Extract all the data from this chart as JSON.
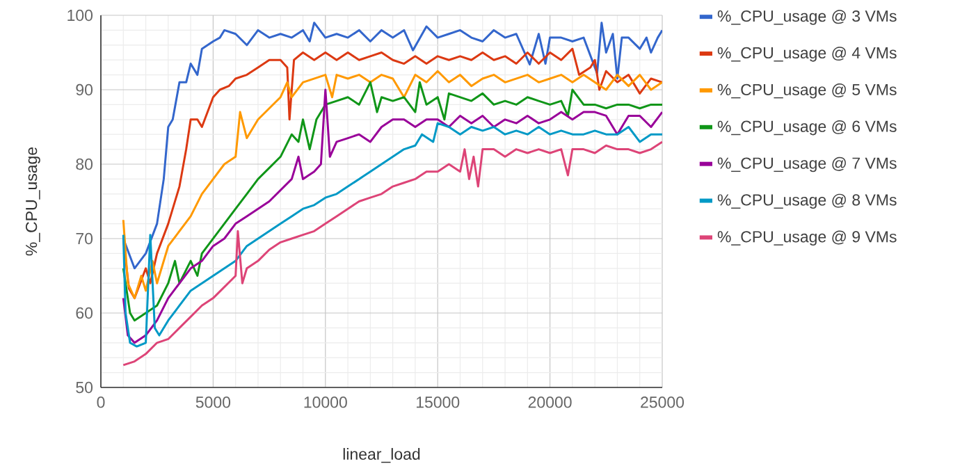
{
  "chart_data": {
    "type": "line",
    "xlabel": "linear_load",
    "ylabel": "%_CPU_usage",
    "xlim": [
      0,
      25000
    ],
    "ylim": [
      50,
      100
    ],
    "xticks": [
      0,
      5000,
      10000,
      15000,
      20000,
      25000
    ],
    "yticks": [
      50,
      60,
      70,
      80,
      90,
      100
    ],
    "grid": true,
    "legend": "right",
    "marker": "none",
    "line_style": "solid",
    "series": [
      {
        "name": "%_CPU_usage @ 3 VMs",
        "color": "#3366cc",
        "x": [
          1000,
          1500,
          2000,
          2500,
          2800,
          3000,
          3200,
          3500,
          3800,
          4000,
          4300,
          4500,
          5000,
          5300,
          5500,
          6000,
          6500,
          7000,
          7500,
          8000,
          8500,
          9000,
          9300,
          9500,
          10000,
          10500,
          11000,
          11500,
          12000,
          12500,
          13000,
          13500,
          13900,
          14500,
          15000,
          15500,
          16000,
          16500,
          17000,
          17500,
          18000,
          18500,
          19100,
          19500,
          19800,
          20000,
          20500,
          21000,
          21500,
          22100,
          22300,
          22500,
          22800,
          23000,
          23200,
          23500,
          24000,
          24300,
          24500,
          24800,
          25000
        ],
        "values": [
          70,
          66,
          68,
          72,
          78,
          85,
          86,
          91,
          91,
          93.5,
          92,
          95.5,
          96.5,
          97,
          98,
          97.5,
          96,
          98,
          97,
          97.5,
          97,
          98,
          96.5,
          99,
          97,
          97.5,
          97,
          98,
          96.5,
          98,
          97,
          98,
          95.3,
          98.5,
          97,
          97.5,
          98,
          97,
          96.5,
          98,
          97,
          97.5,
          93.4,
          97.5,
          93.5,
          97,
          97,
          96.5,
          97,
          92.2,
          99,
          95,
          97.5,
          91.5,
          97,
          97,
          95.5,
          97,
          95,
          97,
          98
        ]
      },
      {
        "name": "%_CPU_usage @ 4 VMs",
        "color": "#dc3912",
        "x": [
          1000,
          1250,
          1500,
          2000,
          2200,
          2500,
          3000,
          3500,
          3800,
          4000,
          4300,
          4500,
          5000,
          5300,
          5700,
          6000,
          6500,
          7000,
          7500,
          8000,
          8300,
          8400,
          8600,
          9000,
          9500,
          10000,
          10500,
          11000,
          11500,
          12000,
          12500,
          13000,
          13500,
          14000,
          14500,
          15000,
          15500,
          16000,
          16500,
          17000,
          17500,
          18000,
          18500,
          19000,
          19500,
          20000,
          20500,
          21000,
          21300,
          21800,
          22000,
          22200,
          22500,
          23000,
          23500,
          24000,
          24500,
          25000
        ],
        "values": [
          70,
          63.3,
          62,
          66,
          64,
          68,
          72,
          77,
          82,
          86,
          86,
          85,
          89,
          90,
          90.5,
          91.5,
          92,
          93,
          94,
          94,
          93,
          86,
          94,
          95,
          94,
          95,
          94,
          95,
          94,
          94.5,
          95,
          94,
          93.5,
          94.5,
          93.5,
          94.5,
          94,
          94.5,
          94,
          95,
          94,
          94.5,
          93.5,
          95,
          93.5,
          95,
          94,
          95.5,
          92,
          93,
          94,
          90,
          92.5,
          91,
          92,
          89.5,
          91.5,
          91
        ]
      },
      {
        "name": "%_CPU_usage @ 5 VMs",
        "color": "#ff9900",
        "x": [
          1000,
          1200,
          1500,
          1800,
          2000,
          2300,
          2500,
          3000,
          3500,
          4000,
          4500,
          5000,
          5500,
          6000,
          6200,
          6500,
          7000,
          7500,
          8000,
          8300,
          8500,
          9000,
          9500,
          10000,
          10300,
          10500,
          11000,
          11500,
          12000,
          12500,
          13000,
          13500,
          14000,
          14500,
          15000,
          15500,
          16000,
          16500,
          17000,
          17500,
          18000,
          18500,
          19000,
          19500,
          20000,
          20500,
          21000,
          21500,
          22000,
          22500,
          23000,
          23500,
          24000,
          24500,
          25000
        ],
        "values": [
          72.5,
          64,
          62,
          65,
          63,
          67,
          64,
          69,
          71,
          73,
          76,
          78,
          80,
          81,
          87,
          83.5,
          86,
          87.5,
          89,
          91,
          89,
          91,
          91.5,
          92,
          89,
          92,
          91.5,
          92,
          91,
          92,
          91.5,
          89,
          92,
          91,
          92.5,
          91,
          92,
          90.5,
          91.5,
          92,
          91,
          91.5,
          92,
          91,
          91.5,
          92,
          91,
          92,
          91,
          90,
          92,
          90.5,
          92,
          90,
          91
        ]
      },
      {
        "name": "%_CPU_usage @ 6 VMs",
        "color": "#109618",
        "x": [
          1000,
          1300,
          1500,
          2000,
          2500,
          3000,
          3300,
          3500,
          4000,
          4300,
          4500,
          5000,
          5500,
          6000,
          6500,
          7000,
          7500,
          8000,
          8500,
          8800,
          9000,
          9300,
          9600,
          10000,
          10500,
          11000,
          11500,
          12000,
          12300,
          12500,
          13000,
          13500,
          14000,
          14200,
          14500,
          15000,
          15300,
          15500,
          16000,
          16500,
          17000,
          17500,
          18000,
          18500,
          19000,
          19500,
          20000,
          20500,
          20800,
          21000,
          21500,
          22000,
          22500,
          23000,
          23500,
          24000,
          24500,
          25000
        ],
        "values": [
          66,
          60,
          59,
          60,
          61,
          64,
          67,
          64,
          67,
          65,
          68,
          70,
          72,
          74,
          76,
          78,
          79.5,
          81,
          84,
          83,
          86,
          82,
          86,
          88,
          88.5,
          89,
          88,
          91,
          87,
          89,
          88.5,
          89,
          87,
          91,
          88,
          89,
          86,
          89.5,
          89,
          88.5,
          89.5,
          88,
          88.5,
          88,
          89,
          88.5,
          88,
          88.5,
          86.5,
          90,
          88,
          88,
          87.5,
          88,
          88,
          87.5,
          88,
          88
        ]
      },
      {
        "name": "%_CPU_usage @ 7 VMs",
        "color": "#990099",
        "x": [
          1000,
          1200,
          1500,
          2000,
          2500,
          3000,
          3500,
          4000,
          4500,
          5000,
          5500,
          6000,
          6500,
          7000,
          7500,
          8000,
          8500,
          8800,
          9000,
          9500,
          9800,
          10000,
          10200,
          10500,
          11000,
          11500,
          12000,
          12500,
          13000,
          13500,
          14000,
          14500,
          15000,
          15500,
          16000,
          16500,
          17000,
          17500,
          18000,
          18500,
          19000,
          19500,
          20000,
          20500,
          21000,
          21500,
          22000,
          22500,
          23000,
          23500,
          24000,
          24500,
          25000
        ],
        "values": [
          62,
          57,
          56,
          57,
          59,
          62,
          64,
          66,
          67,
          69,
          70,
          72,
          73,
          74,
          75,
          76.5,
          78,
          81,
          78,
          79,
          80,
          90,
          81,
          83,
          83.5,
          84,
          83,
          85,
          86,
          86,
          85,
          86,
          86,
          85,
          86.5,
          85.5,
          86.5,
          85,
          86,
          85.5,
          86.5,
          85.5,
          86,
          87,
          86,
          87,
          87,
          86.5,
          84,
          86.5,
          86.5,
          85,
          87
        ]
      },
      {
        "name": "%_CPU_usage @ 8 VMs",
        "color": "#0099c6",
        "x": [
          1000,
          1100,
          1300,
          1600,
          2000,
          2200,
          2400,
          2600,
          3000,
          3500,
          4000,
          4500,
          5000,
          5500,
          6000,
          6500,
          7000,
          7500,
          8000,
          8500,
          9000,
          9500,
          10000,
          10500,
          11000,
          11500,
          12000,
          12500,
          13000,
          13500,
          14000,
          14300,
          14800,
          15000,
          15500,
          16000,
          16500,
          17000,
          17500,
          18000,
          18500,
          19000,
          19500,
          20000,
          20500,
          21000,
          21500,
          22000,
          22500,
          23000,
          23500,
          24000,
          24500,
          25000
        ],
        "values": [
          70.5,
          60,
          56,
          55.5,
          56,
          70.5,
          58,
          57,
          59,
          61,
          63,
          64,
          65,
          66,
          67,
          69,
          70,
          71,
          72,
          73,
          74,
          74.5,
          75.5,
          76,
          77,
          78,
          79,
          80,
          81,
          82,
          82.5,
          84,
          83,
          85.5,
          85,
          84,
          85,
          84.5,
          85,
          84,
          84.5,
          84,
          85,
          84,
          84.5,
          84,
          84,
          84.5,
          84,
          84,
          85,
          83,
          84,
          84
        ]
      },
      {
        "name": "%_CPU_usage @ 9 VMs",
        "color": "#dd4477",
        "x": [
          1000,
          1500,
          2000,
          2500,
          3000,
          3500,
          4000,
          4500,
          5000,
          5500,
          6000,
          6100,
          6300,
          6500,
          7000,
          7500,
          8000,
          8500,
          9000,
          9500,
          10000,
          10500,
          11000,
          11500,
          12000,
          12500,
          13000,
          13500,
          14000,
          14500,
          15000,
          15500,
          16000,
          16200,
          16400,
          16600,
          16800,
          17000,
          17500,
          18000,
          18500,
          19000,
          19500,
          20000,
          20500,
          20800,
          21000,
          21500,
          22000,
          22500,
          23000,
          23500,
          24000,
          24500,
          25000
        ],
        "values": [
          53,
          53.5,
          54.5,
          56,
          56.5,
          58,
          59.5,
          61,
          62,
          63.5,
          65,
          71,
          64,
          66,
          67,
          68.5,
          69.5,
          70,
          70.5,
          71,
          72,
          73,
          74,
          75,
          75.5,
          76,
          77,
          77.5,
          78,
          79,
          79,
          80,
          79,
          82,
          78,
          81,
          77,
          82,
          82,
          81,
          82,
          81.5,
          82,
          81.5,
          82,
          78.5,
          82,
          82,
          81.5,
          82.5,
          82,
          82,
          81.5,
          82,
          83
        ]
      }
    ]
  }
}
